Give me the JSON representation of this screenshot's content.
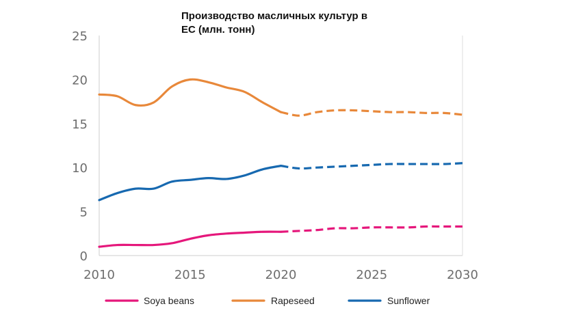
{
  "chart_data": {
    "type": "line",
    "title_lines": [
      "Производство масличных культур в",
      "ЕС (млн. тонн)"
    ],
    "xlabel": "",
    "ylabel": "",
    "xlim": [
      2010,
      2030
    ],
    "ylim": [
      0,
      25
    ],
    "x_ticks": [
      "2010",
      "2015",
      "2020",
      "2025",
      "2030"
    ],
    "y_ticks": [
      "0",
      "5",
      "10",
      "15",
      "20",
      "25"
    ],
    "grid": false,
    "legend_position": "bottom",
    "projection_start": 2020,
    "series": [
      {
        "name": "Soya beans",
        "color": "#e5177b",
        "x": [
          2010,
          2011,
          2012,
          2013,
          2014,
          2015,
          2016,
          2017,
          2018,
          2019,
          2020,
          2021,
          2022,
          2023,
          2024,
          2025,
          2026,
          2027,
          2028,
          2029,
          2030
        ],
        "values": [
          1.0,
          1.2,
          1.2,
          1.2,
          1.4,
          1.9,
          2.3,
          2.5,
          2.6,
          2.7,
          2.7,
          2.8,
          2.9,
          3.1,
          3.1,
          3.2,
          3.2,
          3.2,
          3.3,
          3.3,
          3.3
        ]
      },
      {
        "name": "Rapeseed",
        "color": "#e8883a",
        "x": [
          2010,
          2011,
          2012,
          2013,
          2014,
          2015,
          2016,
          2017,
          2018,
          2019,
          2020,
          2021,
          2022,
          2023,
          2024,
          2025,
          2026,
          2027,
          2028,
          2029,
          2030
        ],
        "values": [
          18.3,
          18.1,
          17.1,
          17.4,
          19.2,
          20.0,
          19.7,
          19.1,
          18.6,
          17.4,
          16.3,
          15.9,
          16.3,
          16.5,
          16.5,
          16.4,
          16.3,
          16.3,
          16.2,
          16.2,
          16.0
        ]
      },
      {
        "name": "Sunflower",
        "color": "#1769b0",
        "x": [
          2010,
          2011,
          2012,
          2013,
          2014,
          2015,
          2016,
          2017,
          2018,
          2019,
          2020,
          2021,
          2022,
          2023,
          2024,
          2025,
          2026,
          2027,
          2028,
          2029,
          2030
        ],
        "values": [
          6.3,
          7.1,
          7.6,
          7.6,
          8.4,
          8.6,
          8.8,
          8.7,
          9.1,
          9.8,
          10.2,
          9.9,
          10.0,
          10.1,
          10.2,
          10.3,
          10.4,
          10.4,
          10.4,
          10.4,
          10.5
        ]
      }
    ]
  }
}
